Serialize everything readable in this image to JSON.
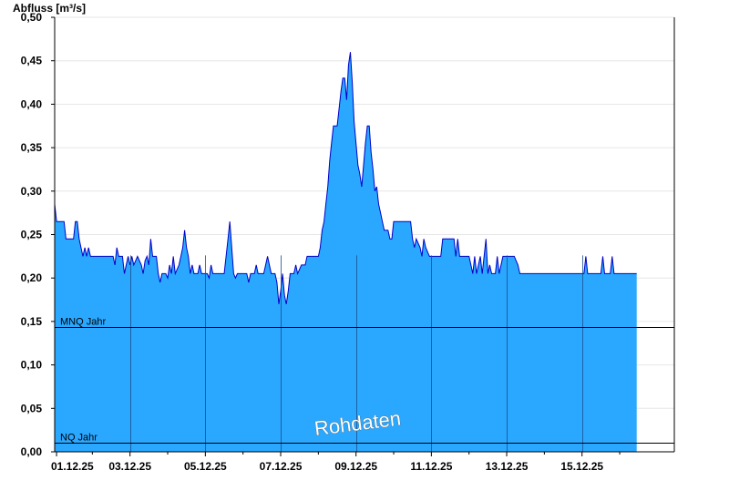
{
  "chart_data": {
    "type": "area",
    "ylabel": "Abfluss [m³/s]",
    "ylim": [
      0,
      0.5
    ],
    "yticks": [
      "0,00",
      "0,05",
      "0,10",
      "0,15",
      "0,20",
      "0,25",
      "0,30",
      "0,35",
      "0,40",
      "0,45",
      "0,50"
    ],
    "xlim": [
      0,
      16.45
    ],
    "xticks": [
      {
        "day": 0.05,
        "label": "01.12.25"
      },
      {
        "day": 2,
        "label": "03.12.25"
      },
      {
        "day": 4,
        "label": "05.12.25"
      },
      {
        "day": 6,
        "label": "07.12.25"
      },
      {
        "day": 8,
        "label": "09.12.25"
      },
      {
        "day": 10,
        "label": "11.12.25"
      },
      {
        "day": 12,
        "label": "13.12.25"
      },
      {
        "day": 14,
        "label": "15.12.25"
      }
    ],
    "grid": true,
    "reference_lines": [
      {
        "label": "MNQ Jahr",
        "value": 0.144
      },
      {
        "label": "NQ Jahr",
        "value": 0.01
      }
    ],
    "watermark": "Rohdaten",
    "colors": {
      "fill": "#2aa8ff",
      "line": "#0000c8",
      "grid": "#e6e6e6",
      "ref": "#000000"
    },
    "series": [
      {
        "values": [
          [
            0.0,
            0.285
          ],
          [
            0.05,
            0.265
          ],
          [
            0.25,
            0.265
          ],
          [
            0.3,
            0.245
          ],
          [
            0.5,
            0.245
          ],
          [
            0.55,
            0.265
          ],
          [
            0.6,
            0.265
          ],
          [
            0.65,
            0.245
          ],
          [
            0.7,
            0.235
          ],
          [
            0.75,
            0.225
          ],
          [
            0.8,
            0.235
          ],
          [
            0.85,
            0.225
          ],
          [
            0.9,
            0.235
          ],
          [
            0.95,
            0.225
          ],
          [
            1.55,
            0.225
          ],
          [
            1.6,
            0.215
          ],
          [
            1.65,
            0.235
          ],
          [
            1.7,
            0.225
          ],
          [
            1.8,
            0.225
          ],
          [
            1.85,
            0.205
          ],
          [
            1.9,
            0.215
          ],
          [
            1.95,
            0.225
          ],
          [
            2.0,
            0.215
          ],
          [
            2.05,
            0.225
          ],
          [
            2.1,
            0.215
          ],
          [
            2.2,
            0.225
          ],
          [
            2.3,
            0.215
          ],
          [
            2.35,
            0.205
          ],
          [
            2.4,
            0.22
          ],
          [
            2.45,
            0.225
          ],
          [
            2.5,
            0.215
          ],
          [
            2.55,
            0.245
          ],
          [
            2.6,
            0.225
          ],
          [
            2.7,
            0.225
          ],
          [
            2.75,
            0.205
          ],
          [
            2.8,
            0.195
          ],
          [
            2.85,
            0.205
          ],
          [
            2.95,
            0.205
          ],
          [
            3.0,
            0.2
          ],
          [
            3.05,
            0.215
          ],
          [
            3.1,
            0.205
          ],
          [
            3.15,
            0.225
          ],
          [
            3.2,
            0.205
          ],
          [
            3.3,
            0.215
          ],
          [
            3.35,
            0.225
          ],
          [
            3.4,
            0.235
          ],
          [
            3.45,
            0.255
          ],
          [
            3.5,
            0.235
          ],
          [
            3.55,
            0.225
          ],
          [
            3.6,
            0.205
          ],
          [
            3.65,
            0.215
          ],
          [
            3.7,
            0.205
          ],
          [
            3.8,
            0.205
          ],
          [
            3.85,
            0.215
          ],
          [
            3.9,
            0.205
          ],
          [
            4.05,
            0.205
          ],
          [
            4.1,
            0.2
          ],
          [
            4.15,
            0.215
          ],
          [
            4.2,
            0.205
          ],
          [
            4.5,
            0.205
          ],
          [
            4.55,
            0.225
          ],
          [
            4.6,
            0.245
          ],
          [
            4.65,
            0.265
          ],
          [
            4.7,
            0.235
          ],
          [
            4.75,
            0.205
          ],
          [
            4.8,
            0.2
          ],
          [
            4.85,
            0.205
          ],
          [
            5.1,
            0.205
          ],
          [
            5.15,
            0.195
          ],
          [
            5.2,
            0.205
          ],
          [
            5.3,
            0.205
          ],
          [
            5.35,
            0.215
          ],
          [
            5.4,
            0.205
          ],
          [
            5.55,
            0.205
          ],
          [
            5.6,
            0.215
          ],
          [
            5.65,
            0.225
          ],
          [
            5.7,
            0.215
          ],
          [
            5.75,
            0.205
          ],
          [
            5.85,
            0.205
          ],
          [
            5.9,
            0.195
          ],
          [
            5.95,
            0.17
          ],
          [
            6.0,
            0.185
          ],
          [
            6.05,
            0.205
          ],
          [
            6.1,
            0.18
          ],
          [
            6.15,
            0.17
          ],
          [
            6.2,
            0.185
          ],
          [
            6.25,
            0.205
          ],
          [
            6.35,
            0.205
          ],
          [
            6.4,
            0.215
          ],
          [
            6.45,
            0.205
          ],
          [
            6.55,
            0.215
          ],
          [
            6.65,
            0.215
          ],
          [
            6.7,
            0.225
          ],
          [
            6.8,
            0.225
          ],
          [
            6.9,
            0.225
          ],
          [
            7.0,
            0.225
          ],
          [
            7.05,
            0.235
          ],
          [
            7.1,
            0.255
          ],
          [
            7.15,
            0.265
          ],
          [
            7.2,
            0.285
          ],
          [
            7.25,
            0.305
          ],
          [
            7.3,
            0.335
          ],
          [
            7.35,
            0.355
          ],
          [
            7.4,
            0.375
          ],
          [
            7.5,
            0.375
          ],
          [
            7.55,
            0.395
          ],
          [
            7.6,
            0.415
          ],
          [
            7.65,
            0.43
          ],
          [
            7.7,
            0.43
          ],
          [
            7.75,
            0.405
          ],
          [
            7.8,
            0.445
          ],
          [
            7.85,
            0.46
          ],
          [
            7.9,
            0.425
          ],
          [
            7.95,
            0.38
          ],
          [
            8.0,
            0.355
          ],
          [
            8.05,
            0.33
          ],
          [
            8.1,
            0.32
          ],
          [
            8.15,
            0.305
          ],
          [
            8.2,
            0.33
          ],
          [
            8.25,
            0.355
          ],
          [
            8.3,
            0.375
          ],
          [
            8.35,
            0.375
          ],
          [
            8.4,
            0.345
          ],
          [
            8.45,
            0.325
          ],
          [
            8.5,
            0.3
          ],
          [
            8.55,
            0.305
          ],
          [
            8.6,
            0.285
          ],
          [
            8.65,
            0.275
          ],
          [
            8.7,
            0.265
          ],
          [
            8.75,
            0.255
          ],
          [
            8.85,
            0.255
          ],
          [
            8.9,
            0.245
          ],
          [
            8.95,
            0.245
          ],
          [
            9.0,
            0.265
          ],
          [
            9.45,
            0.265
          ],
          [
            9.5,
            0.245
          ],
          [
            9.55,
            0.235
          ],
          [
            9.6,
            0.245
          ],
          [
            9.7,
            0.235
          ],
          [
            9.75,
            0.225
          ],
          [
            9.8,
            0.245
          ],
          [
            9.85,
            0.235
          ],
          [
            9.95,
            0.225
          ],
          [
            10.25,
            0.225
          ],
          [
            10.3,
            0.245
          ],
          [
            10.6,
            0.245
          ],
          [
            10.65,
            0.225
          ],
          [
            10.7,
            0.245
          ],
          [
            10.75,
            0.225
          ],
          [
            11.0,
            0.225
          ],
          [
            11.05,
            0.215
          ],
          [
            11.1,
            0.205
          ],
          [
            11.15,
            0.225
          ],
          [
            11.2,
            0.205
          ],
          [
            11.3,
            0.225
          ],
          [
            11.35,
            0.205
          ],
          [
            11.45,
            0.245
          ],
          [
            11.5,
            0.205
          ],
          [
            11.55,
            0.215
          ],
          [
            11.6,
            0.205
          ],
          [
            11.7,
            0.205
          ],
          [
            11.75,
            0.225
          ],
          [
            11.8,
            0.205
          ],
          [
            11.9,
            0.225
          ],
          [
            12.2,
            0.225
          ],
          [
            12.3,
            0.215
          ],
          [
            12.35,
            0.205
          ],
          [
            14.05,
            0.205
          ],
          [
            14.1,
            0.225
          ],
          [
            14.15,
            0.205
          ],
          [
            14.5,
            0.205
          ],
          [
            14.55,
            0.225
          ],
          [
            14.6,
            0.205
          ],
          [
            14.75,
            0.205
          ],
          [
            14.8,
            0.225
          ],
          [
            14.85,
            0.205
          ],
          [
            15.45,
            0.205
          ]
        ]
      }
    ]
  }
}
